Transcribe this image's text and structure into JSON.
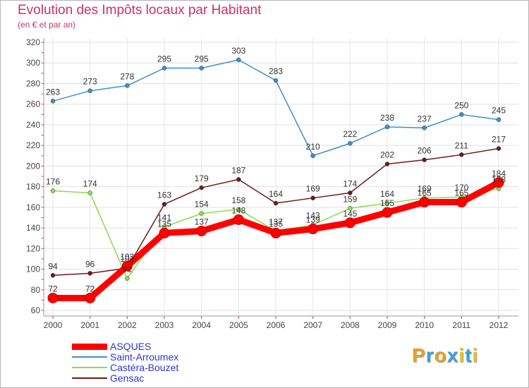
{
  "chart_data": {
    "type": "line",
    "title": "Evolution des Impôts locaux par Habitant",
    "subtitle": "(en € et par an)",
    "categories": [
      "2000",
      "2001",
      "2002",
      "2003",
      "2004",
      "2005",
      "2006",
      "2007",
      "2008",
      "2009",
      "2010",
      "2011",
      "2012"
    ],
    "ylim": [
      60,
      320
    ],
    "yticks": [
      "60",
      "80",
      "100",
      "120",
      "140",
      "160",
      "180",
      "200",
      "220",
      "240",
      "260",
      "280",
      "300",
      "320"
    ],
    "grid": true,
    "legend_position": "bottom-left",
    "series": [
      {
        "name": "ASQUES",
        "color": "#ff0000",
        "values": [
          72,
          72,
          103,
          135,
          137,
          148,
          135,
          139,
          145,
          155,
          165,
          165,
          184
        ],
        "labels": [
          "72",
          "72",
          "103",
          "135",
          "137",
          "148",
          "135",
          "139",
          "145",
          "155",
          "165",
          "165",
          "184"
        ]
      },
      {
        "name": "Saint-Arroumex",
        "color": "#3d8fd1",
        "values": [
          263,
          273,
          278,
          295,
          295,
          303,
          283,
          210,
          222,
          238,
          237,
          250,
          245
        ],
        "labels": [
          "263",
          "273",
          "278",
          "295",
          "295",
          "303",
          "283",
          "210",
          "222",
          "238",
          "237",
          "250",
          "245"
        ]
      },
      {
        "name": "Castéra-Bouzet",
        "color": "#8ddc4c",
        "values": [
          176,
          174,
          91,
          141,
          154,
          158,
          137,
          143,
          159,
          164,
          169,
          170,
          178
        ],
        "labels": [
          "176",
          "174",
          "91",
          "141",
          "154",
          "158",
          "137",
          "143",
          "159",
          "164",
          "169",
          "170",
          "178"
        ]
      },
      {
        "name": "Gensac",
        "color": "#6b1b1b",
        "values": [
          94,
          96,
          101,
          163,
          179,
          187,
          164,
          169,
          174,
          202,
          206,
          211,
          217
        ],
        "labels": [
          "94",
          "96",
          "101",
          "163",
          "179",
          "187",
          "164",
          "169",
          "174",
          "202",
          "206",
          "211",
          "217"
        ]
      }
    ]
  },
  "logo": {
    "letters": [
      "P",
      "r",
      "o",
      "x",
      "i",
      "t",
      "i"
    ],
    "colors": [
      "#e8a020",
      "#3aa0d8",
      "#e8a020",
      "#3aa0d8",
      "#e8c020",
      "#3aa0d8",
      "#e8c020"
    ]
  }
}
